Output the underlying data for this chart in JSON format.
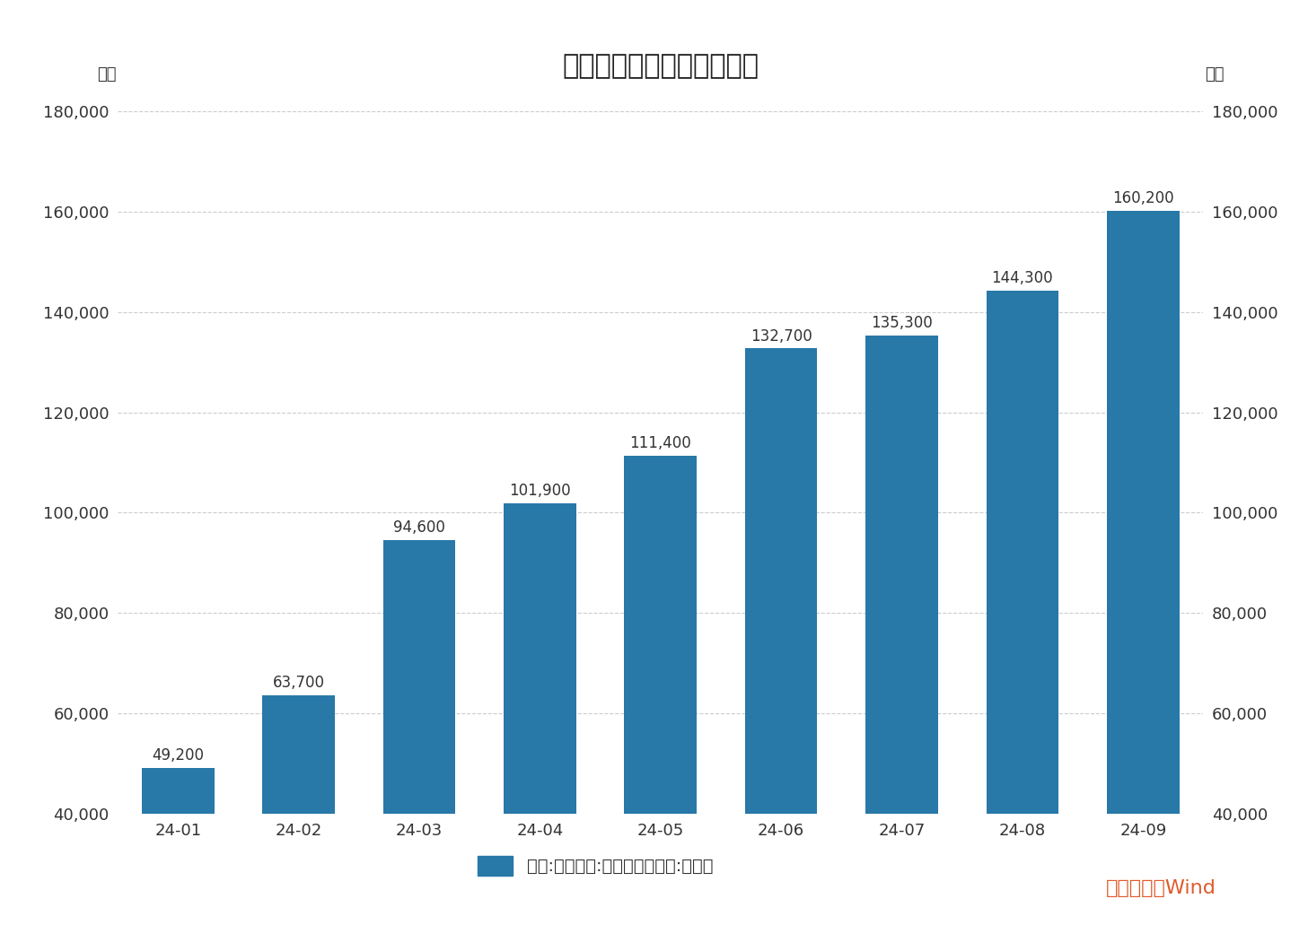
{
  "title": "新增人民币贷款累计值情况",
  "categories": [
    "24-01",
    "24-02",
    "24-03",
    "24-04",
    "24-05",
    "24-06",
    "24-07",
    "24-08",
    "24-09"
  ],
  "values": [
    49200,
    63700,
    94600,
    101900,
    111400,
    132700,
    135300,
    144300,
    160200
  ],
  "bar_color": "#2878a8",
  "ylabel_left": "亿元",
  "ylabel_right": "亿元",
  "ylim": [
    40000,
    180000
  ],
  "yticks": [
    40000,
    60000,
    80000,
    100000,
    120000,
    140000,
    160000,
    180000
  ],
  "legend_label": "中国:金融机构:新增人民币贷款:累计值",
  "source_text": "数据来源：Wind",
  "source_color": "#e05a2b",
  "background_color": "#ffffff",
  "grid_color": "#cccccc",
  "title_fontsize": 22,
  "label_fontsize": 13,
  "tick_fontsize": 13,
  "annotation_fontsize": 12,
  "legend_fontsize": 14,
  "source_fontsize": 16
}
